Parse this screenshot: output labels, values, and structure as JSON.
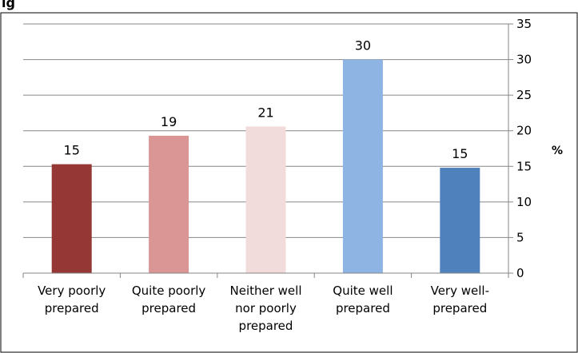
{
  "chart_data": {
    "type": "bar",
    "title": "ig",
    "categories": [
      [
        "Very poorly",
        "prepared"
      ],
      [
        "Quite poorly",
        "prepared"
      ],
      [
        "Neither well",
        "nor poorly",
        "prepared"
      ],
      [
        "Quite well",
        "prepared"
      ],
      [
        "Very well-",
        "prepared"
      ]
    ],
    "values": [
      15.3,
      19.3,
      20.6,
      30,
      14.8
    ],
    "data_labels": [
      "15",
      "19",
      "21",
      "30",
      "15"
    ],
    "bar_colors": [
      "#953735",
      "#d99694",
      "#f2dcdb",
      "#8eb4e3",
      "#4f81bd"
    ],
    "ylabel": "%",
    "ylim": [
      0,
      35
    ],
    "yticks": [
      0,
      5,
      10,
      15,
      20,
      25,
      30,
      35
    ],
    "y_axis_position": "right",
    "grid": true,
    "legend": "none"
  }
}
